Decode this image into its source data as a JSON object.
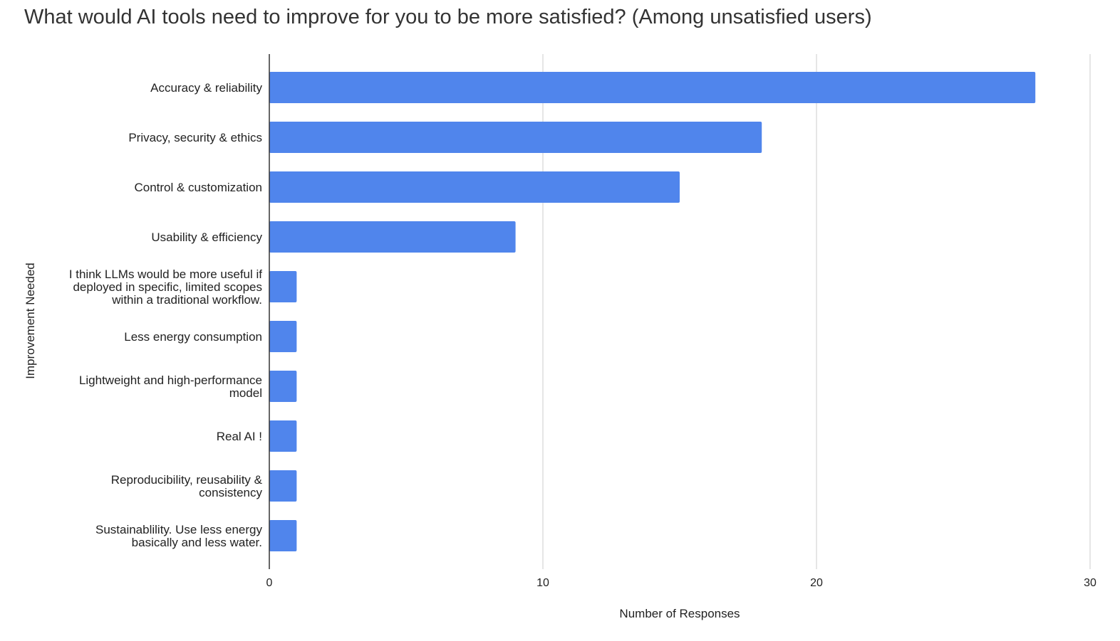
{
  "chart_data": {
    "type": "bar",
    "orientation": "horizontal",
    "title": "What would AI tools need to improve for you to be more satisfied? (Among unsatisfied users)",
    "xlabel": "Number of Responses",
    "ylabel": "Improvement Needed",
    "xlim": [
      0,
      30
    ],
    "xticks": [
      0,
      10,
      20,
      30
    ],
    "grid": true,
    "legend": "none",
    "bar_color": "#5085ec",
    "categories": [
      "Accuracy & reliability",
      "Privacy, security & ethics",
      "Control & customization",
      "Usability & efficiency",
      "I think LLMs would be more useful if deployed in specific, limited scopes within a traditional workflow.",
      "Less energy consumption",
      "Lightweight and high-performance model",
      "Real AI !",
      "Reproducibility, reusability & consistency",
      "Sustainablility. Use less energy basically and less water."
    ],
    "category_lines": [
      [
        "Accuracy & reliability"
      ],
      [
        "Privacy, security & ethics"
      ],
      [
        "Control & customization"
      ],
      [
        "Usability & efficiency"
      ],
      [
        "I think LLMs would be more useful if",
        "deployed in specific, limited scopes",
        "within a traditional workflow."
      ],
      [
        "Less energy consumption"
      ],
      [
        "Lightweight and high-performance",
        "model"
      ],
      [
        "Real AI !"
      ],
      [
        "Reproducibility, reusability &",
        "consistency"
      ],
      [
        "Sustainablility. Use less energy",
        "basically and less water."
      ]
    ],
    "values": [
      28,
      18,
      15,
      9,
      1,
      1,
      1,
      1,
      1,
      1
    ]
  }
}
